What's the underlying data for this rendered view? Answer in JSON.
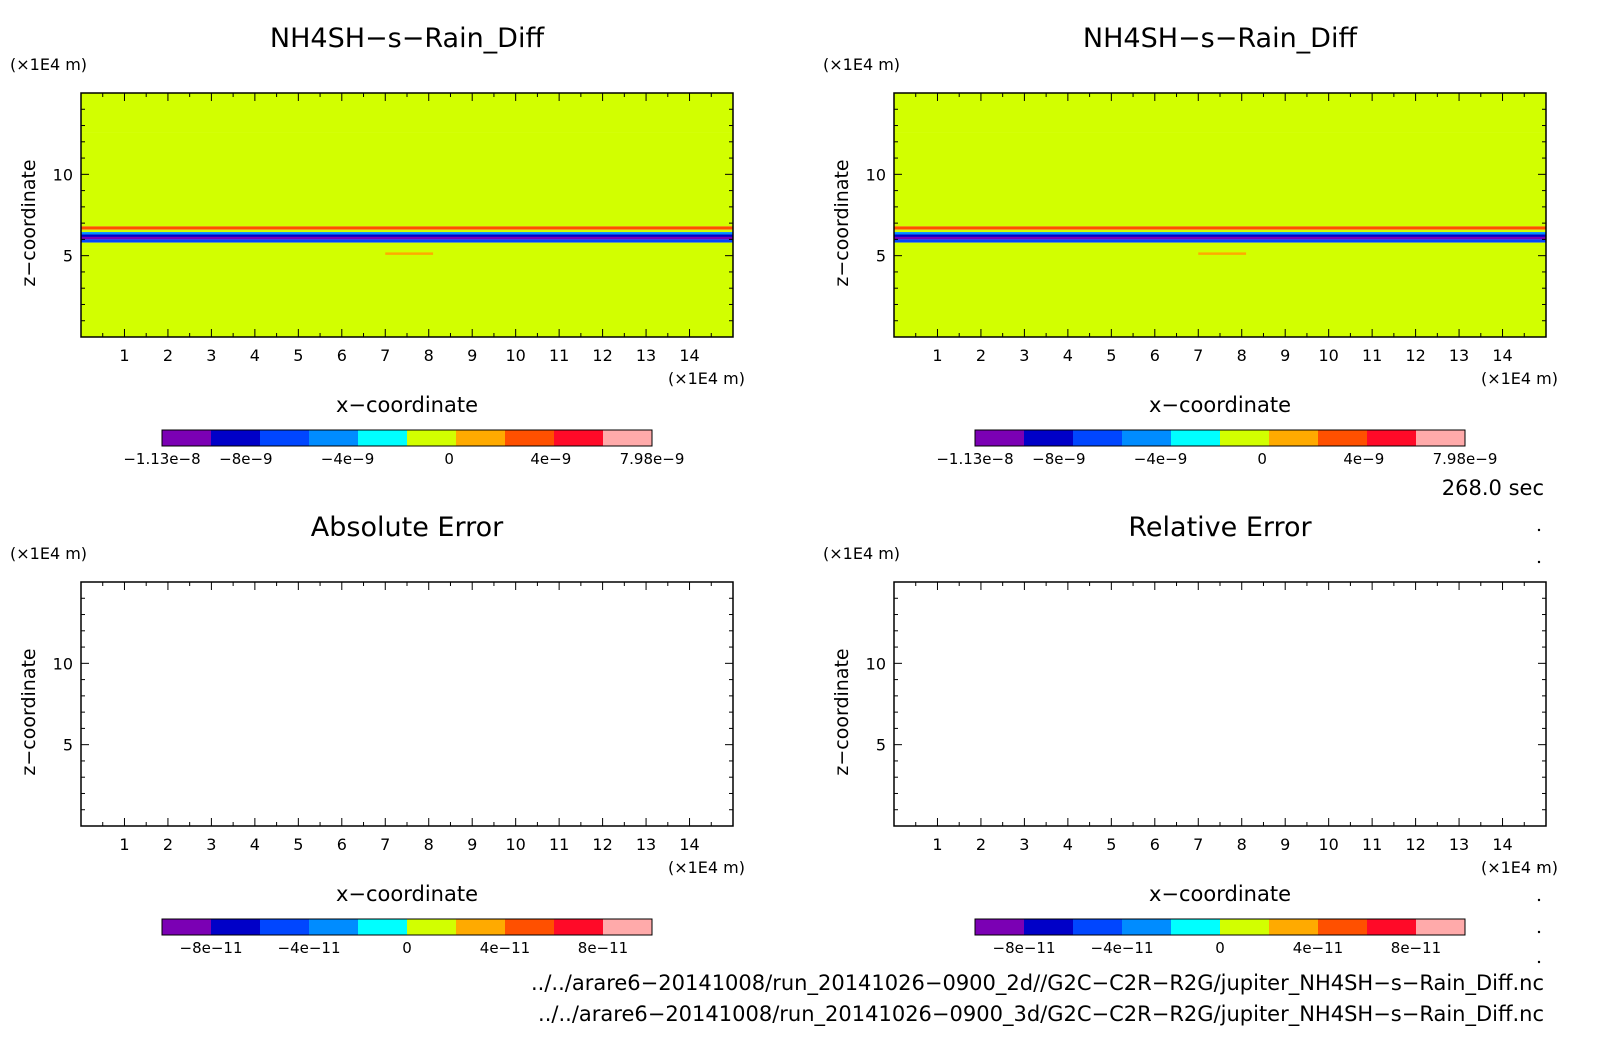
{
  "chart_data": [
    {
      "type": "heatmap",
      "title": "NH4SH−s−Rain_Diff",
      "xlabel": "x−coordinate",
      "ylabel": "z−coordinate",
      "x_unit": "(×1E4 m)",
      "y_unit": "(×1E4 m)",
      "xlim": [
        0,
        15
      ],
      "ylim": [
        0,
        15
      ],
      "x_ticks": [
        "1",
        "2",
        "3",
        "4",
        "5",
        "6",
        "7",
        "8",
        "9",
        "10",
        "11",
        "12",
        "13",
        "14"
      ],
      "y_ticks": [
        "5",
        "10"
      ],
      "z_bands": [
        {
          "z_from": 12.6,
          "z_to": 15.0,
          "level": 0.5
        },
        {
          "z_from": 6.8,
          "z_to": 12.6,
          "level": 0
        },
        {
          "z_from": 6.6,
          "z_to": 6.8,
          "level": 2
        },
        {
          "z_from": 6.45,
          "z_to": 6.6,
          "level": 0
        },
        {
          "z_from": 6.3,
          "z_to": 6.45,
          "level": -2
        },
        {
          "z_from": 6.15,
          "z_to": 6.3,
          "level": -4
        },
        {
          "z_from": 6.0,
          "z_to": 6.15,
          "level": -6
        },
        {
          "z_from": 5.8,
          "z_to": 6.0,
          "level": -3
        },
        {
          "z_from": 5.5,
          "z_to": 5.8,
          "level": 0
        },
        {
          "z_from": 0,
          "z_to": 5.5,
          "level": 0.5
        }
      ],
      "colorbar": {
        "colors": [
          "#7b00b4",
          "#0000c8",
          "#0046ff",
          "#008cff",
          "#00ffff",
          "#d2ff00",
          "#ffaa00",
          "#ff5000",
          "#ff0a28",
          "#ffaaaa"
        ],
        "tick_labels": [
          "−1.13e−8",
          "−8e−9",
          "−4e−9",
          "0",
          "4e−9",
          "7.98e−9"
        ],
        "tick_values": [
          -1.13e-08,
          -8e-09,
          -4e-09,
          0,
          4e-09,
          7.98e-09
        ],
        "range": [
          -1.13e-08,
          7.98e-09
        ]
      }
    },
    {
      "type": "heatmap",
      "title": "NH4SH−s−Rain_Diff",
      "xlabel": "x−coordinate",
      "ylabel": "z−coordinate",
      "x_unit": "(×1E4 m)",
      "y_unit": "(×1E4 m)",
      "xlim": [
        0,
        15
      ],
      "ylim": [
        0,
        15
      ],
      "x_ticks": [
        "1",
        "2",
        "3",
        "4",
        "5",
        "6",
        "7",
        "8",
        "9",
        "10",
        "11",
        "12",
        "13",
        "14"
      ],
      "y_ticks": [
        "5",
        "10"
      ],
      "z_bands": [
        {
          "z_from": 12.6,
          "z_to": 15.0,
          "level": 0.5
        },
        {
          "z_from": 6.8,
          "z_to": 12.6,
          "level": 0
        },
        {
          "z_from": 6.6,
          "z_to": 6.8,
          "level": 2
        },
        {
          "z_from": 6.45,
          "z_to": 6.6,
          "level": 0
        },
        {
          "z_from": 6.3,
          "z_to": 6.45,
          "level": -2
        },
        {
          "z_from": 6.15,
          "z_to": 6.3,
          "level": -4
        },
        {
          "z_from": 6.0,
          "z_to": 6.15,
          "level": -6
        },
        {
          "z_from": 5.8,
          "z_to": 6.0,
          "level": -3
        },
        {
          "z_from": 5.5,
          "z_to": 5.8,
          "level": 0
        },
        {
          "z_from": 0,
          "z_to": 5.5,
          "level": 0.5
        }
      ],
      "colorbar": {
        "colors": [
          "#7b00b4",
          "#0000c8",
          "#0046ff",
          "#008cff",
          "#00ffff",
          "#d2ff00",
          "#ffaa00",
          "#ff5000",
          "#ff0a28",
          "#ffaaaa"
        ],
        "tick_labels": [
          "−1.13e−8",
          "−8e−9",
          "−4e−9",
          "0",
          "4e−9",
          "7.98e−9"
        ],
        "tick_values": [
          -1.13e-08,
          -8e-09,
          -4e-09,
          0,
          4e-09,
          7.98e-09
        ],
        "range": [
          -1.13e-08,
          7.98e-09
        ]
      }
    },
    {
      "type": "heatmap",
      "title": "Absolute Error",
      "xlabel": "x−coordinate",
      "ylabel": "z−coordinate",
      "x_unit": "(×1E4 m)",
      "y_unit": "(×1E4 m)",
      "xlim": [
        0,
        15
      ],
      "ylim": [
        0,
        15
      ],
      "x_ticks": [
        "1",
        "2",
        "3",
        "4",
        "5",
        "6",
        "7",
        "8",
        "9",
        "10",
        "11",
        "12",
        "13",
        "14"
      ],
      "y_ticks": [
        "5",
        "10"
      ],
      "z_bands": [],
      "colorbar": {
        "colors": [
          "#7b00b4",
          "#0000c8",
          "#0046ff",
          "#008cff",
          "#00ffff",
          "#d2ff00",
          "#ffaa00",
          "#ff5000",
          "#ff0a28",
          "#ffaaaa"
        ],
        "tick_labels": [
          "−8e−11",
          "−4e−11",
          "0",
          "4e−11",
          "8e−11"
        ],
        "tick_values": [
          -8e-11,
          -4e-11,
          0,
          4e-11,
          8e-11
        ],
        "range": [
          -1e-10,
          1e-10
        ]
      }
    },
    {
      "type": "heatmap",
      "title": "Relative Error",
      "xlabel": "x−coordinate",
      "ylabel": "z−coordinate",
      "x_unit": "(×1E4 m)",
      "y_unit": "(×1E4 m)",
      "xlim": [
        0,
        15
      ],
      "ylim": [
        0,
        15
      ],
      "x_ticks": [
        "1",
        "2",
        "3",
        "4",
        "5",
        "6",
        "7",
        "8",
        "9",
        "10",
        "11",
        "12",
        "13",
        "14"
      ],
      "y_ticks": [
        "5",
        "10"
      ],
      "z_bands": [],
      "colorbar": {
        "colors": [
          "#7b00b4",
          "#0000c8",
          "#0046ff",
          "#008cff",
          "#00ffff",
          "#d2ff00",
          "#ffaa00",
          "#ff5000",
          "#ff0a28",
          "#ffaaaa"
        ],
        "tick_labels": [
          "−8e−11",
          "−4e−11",
          "0",
          "4e−11",
          "8e−11"
        ],
        "tick_values": [
          -8e-11,
          -4e-11,
          0,
          4e-11,
          8e-11
        ],
        "range": [
          -1e-10,
          1e-10
        ]
      }
    }
  ],
  "time_label": "268.0 sec",
  "file_paths": [
    "../../arare6−20141008/run_20141026−0900_2d//G2C−C2R−R2G/jupiter_NH4SH−s−Rain_Diff.nc",
    "../../arare6−20141008/run_20141026−0900_3d/G2C−C2R−R2G/jupiter_NH4SH−s−Rain_Diff.nc"
  ]
}
